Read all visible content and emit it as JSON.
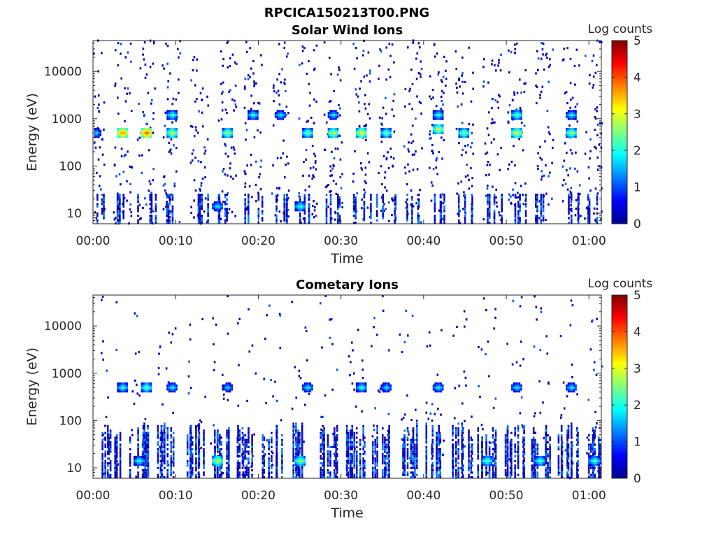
{
  "figure": {
    "title": "RPCICA150213T00.PNG"
  },
  "chart_data": [
    {
      "type": "heatmap",
      "title": "Solar Wind Ions",
      "xlabel": "Time",
      "ylabel": "Energy (eV)",
      "x_ticks": [
        "00:00",
        "00:10",
        "00:20",
        "00:30",
        "00:40",
        "00:50",
        "01:00"
      ],
      "x_tick_minutes": [
        0,
        10,
        20,
        30,
        40,
        50,
        60
      ],
      "xlim_minutes": [
        0,
        61.5
      ],
      "y_scale": "log",
      "y_ticks": [
        "10",
        "100",
        "1000",
        "10000"
      ],
      "y_tick_values": [
        10,
        100,
        1000,
        10000
      ],
      "ylim": [
        6,
        45000
      ],
      "colorbar": {
        "label": "Log counts",
        "ticks": [
          "0",
          "1",
          "2",
          "3",
          "4",
          "5"
        ],
        "clim": [
          0,
          5
        ],
        "colormap": "jet"
      },
      "sweep_minutes": [
        0.2,
        3.5,
        6.3,
        9.4,
        12.8,
        16.2,
        19.3,
        22.6,
        25.9,
        29.0,
        32.4,
        35.4,
        38.6,
        41.7,
        44.8,
        48.2,
        51.2,
        54.5,
        57.8,
        60.5
      ],
      "peaks": [
        {
          "t": 0.3,
          "e": 500,
          "v": 1.8
        },
        {
          "t": 3.5,
          "e": 500,
          "v": 3.8
        },
        {
          "t": 6.4,
          "e": 500,
          "v": 4.0
        },
        {
          "t": 9.5,
          "e": 500,
          "v": 3.0
        },
        {
          "t": 9.5,
          "e": 1200,
          "v": 2.3
        },
        {
          "t": 16.2,
          "e": 500,
          "v": 2.8
        },
        {
          "t": 19.3,
          "e": 1200,
          "v": 2.2
        },
        {
          "t": 22.6,
          "e": 1200,
          "v": 2.0
        },
        {
          "t": 25.9,
          "e": 500,
          "v": 2.6
        },
        {
          "t": 29.0,
          "e": 500,
          "v": 3.0
        },
        {
          "t": 29.0,
          "e": 1200,
          "v": 2.0
        },
        {
          "t": 32.4,
          "e": 500,
          "v": 3.2
        },
        {
          "t": 35.4,
          "e": 500,
          "v": 2.6
        },
        {
          "t": 41.7,
          "e": 600,
          "v": 3.0
        },
        {
          "t": 41.7,
          "e": 1200,
          "v": 2.2
        },
        {
          "t": 44.8,
          "e": 500,
          "v": 2.7
        },
        {
          "t": 51.2,
          "e": 500,
          "v": 3.1
        },
        {
          "t": 51.2,
          "e": 1200,
          "v": 2.5
        },
        {
          "t": 57.8,
          "e": 500,
          "v": 2.8
        },
        {
          "t": 57.8,
          "e": 1200,
          "v": 2.1
        },
        {
          "t": 25.0,
          "e": 14,
          "v": 2.3
        },
        {
          "t": 15.0,
          "e": 14,
          "v": 2.0
        }
      ]
    },
    {
      "type": "heatmap",
      "title": "Cometary Ions",
      "xlabel": "Time",
      "ylabel": "Energy (eV)",
      "x_ticks": [
        "00:00",
        "00:10",
        "00:20",
        "00:30",
        "00:40",
        "00:50",
        "01:00"
      ],
      "x_tick_minutes": [
        0,
        10,
        20,
        30,
        40,
        50,
        60
      ],
      "xlim_minutes": [
        0,
        61.5
      ],
      "y_scale": "log",
      "y_ticks": [
        "10",
        "100",
        "1000",
        "10000"
      ],
      "y_tick_values": [
        10,
        100,
        1000,
        10000
      ],
      "ylim": [
        6,
        45000
      ],
      "colorbar": {
        "label": "Log counts",
        "ticks": [
          "0",
          "1",
          "2",
          "3",
          "4",
          "5"
        ],
        "clim": [
          0,
          5
        ],
        "colormap": "jet"
      },
      "sweep_minutes": [
        2.0,
        5.5,
        8.8,
        12.5,
        15.2,
        18.5,
        21.6,
        25.0,
        28.4,
        31.6,
        34.6,
        38.0,
        41.3,
        44.6,
        47.6,
        51.0,
        54.0,
        57.4,
        60.6
      ],
      "peaks": [
        {
          "t": 3.5,
          "e": 500,
          "v": 2.2
        },
        {
          "t": 6.4,
          "e": 500,
          "v": 2.5
        },
        {
          "t": 9.5,
          "e": 500,
          "v": 2.0
        },
        {
          "t": 16.2,
          "e": 500,
          "v": 1.8
        },
        {
          "t": 25.9,
          "e": 500,
          "v": 2.0
        },
        {
          "t": 32.4,
          "e": 500,
          "v": 2.2
        },
        {
          "t": 35.4,
          "e": 500,
          "v": 1.9
        },
        {
          "t": 41.7,
          "e": 500,
          "v": 2.0
        },
        {
          "t": 51.2,
          "e": 500,
          "v": 2.0
        },
        {
          "t": 57.8,
          "e": 500,
          "v": 2.0
        },
        {
          "t": 15.0,
          "e": 14,
          "v": 3.0
        },
        {
          "t": 25.0,
          "e": 14,
          "v": 2.8
        },
        {
          "t": 47.6,
          "e": 14,
          "v": 2.5
        },
        {
          "t": 54.0,
          "e": 14,
          "v": 2.4
        },
        {
          "t": 60.6,
          "e": 14,
          "v": 2.4
        },
        {
          "t": 5.5,
          "e": 14,
          "v": 2.2
        }
      ]
    }
  ]
}
